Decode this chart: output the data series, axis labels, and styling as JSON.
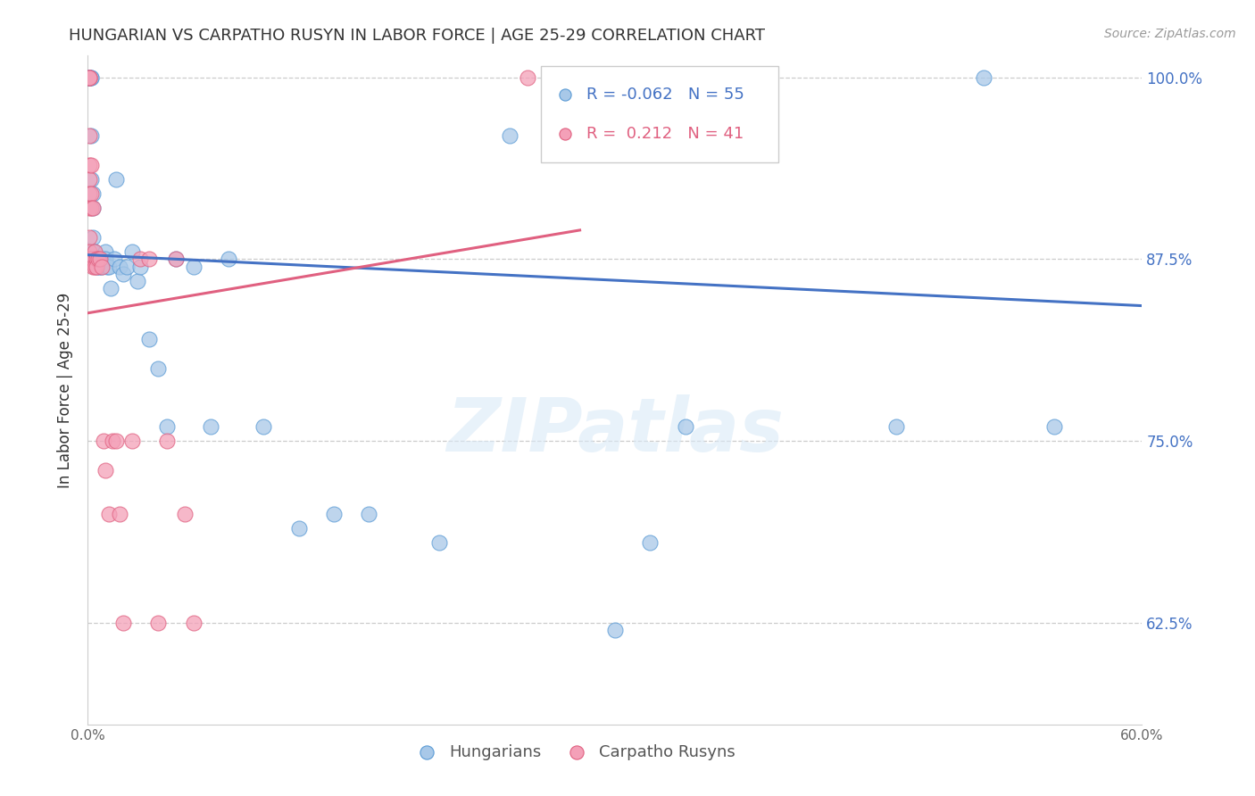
{
  "title": "HUNGARIAN VS CARPATHO RUSYN IN LABOR FORCE | AGE 25-29 CORRELATION CHART",
  "source": "Source: ZipAtlas.com",
  "ylabel": "In Labor Force | Age 25-29",
  "xlim": [
    0.0,
    0.6
  ],
  "ylim": [
    0.555,
    1.015
  ],
  "yticks": [
    0.625,
    0.75,
    0.875,
    1.0
  ],
  "ytick_labels": [
    "62.5%",
    "75.0%",
    "87.5%",
    "100.0%"
  ],
  "xticks": [
    0.0,
    0.1,
    0.2,
    0.3,
    0.4,
    0.5,
    0.6
  ],
  "xtick_labels": [
    "0.0%",
    "",
    "",
    "",
    "",
    "",
    "60.0%"
  ],
  "blue_color": "#a8c8e8",
  "pink_color": "#f4a0b8",
  "blue_edge_color": "#5b9bd5",
  "pink_edge_color": "#e06080",
  "blue_line_color": "#4472c4",
  "pink_line_color": "#e06080",
  "legend_label_blue": "Hungarians",
  "legend_label_pink": "Carpatho Rusyns",
  "R_blue": -0.062,
  "N_blue": 55,
  "R_pink": 0.212,
  "N_pink": 41,
  "watermark": "ZIPatlas",
  "blue_trend_x0": 0.0,
  "blue_trend_y0": 0.878,
  "blue_trend_x1": 0.6,
  "blue_trend_y1": 0.843,
  "pink_trend_x0": 0.0,
  "pink_trend_y0": 0.838,
  "pink_trend_x1": 0.28,
  "pink_trend_y1": 0.895,
  "blue_scatter_x": [
    0.001,
    0.001,
    0.001,
    0.001,
    0.002,
    0.002,
    0.002,
    0.002,
    0.003,
    0.003,
    0.003,
    0.003,
    0.004,
    0.004,
    0.005,
    0.005,
    0.006,
    0.006,
    0.007,
    0.007,
    0.008,
    0.008,
    0.009,
    0.01,
    0.01,
    0.011,
    0.012,
    0.013,
    0.015,
    0.016,
    0.018,
    0.02,
    0.022,
    0.025,
    0.028,
    0.03,
    0.035,
    0.04,
    0.045,
    0.05,
    0.06,
    0.07,
    0.08,
    0.1,
    0.12,
    0.14,
    0.16,
    0.2,
    0.24,
    0.3,
    0.32,
    0.34,
    0.46,
    0.51,
    0.55
  ],
  "blue_scatter_y": [
    1.0,
    1.0,
    1.0,
    1.0,
    1.0,
    1.0,
    0.96,
    0.93,
    0.92,
    0.91,
    0.89,
    0.88,
    0.88,
    0.875,
    0.875,
    0.87,
    0.875,
    0.87,
    0.875,
    0.87,
    0.875,
    0.87,
    0.875,
    0.88,
    0.875,
    0.87,
    0.87,
    0.855,
    0.875,
    0.93,
    0.87,
    0.865,
    0.87,
    0.88,
    0.86,
    0.87,
    0.82,
    0.8,
    0.76,
    0.875,
    0.87,
    0.76,
    0.875,
    0.76,
    0.69,
    0.7,
    0.7,
    0.68,
    0.96,
    0.62,
    0.68,
    0.76,
    0.76,
    1.0,
    0.76
  ],
  "pink_scatter_x": [
    0.001,
    0.001,
    0.001,
    0.001,
    0.001,
    0.001,
    0.001,
    0.001,
    0.001,
    0.001,
    0.001,
    0.002,
    0.002,
    0.002,
    0.002,
    0.003,
    0.003,
    0.004,
    0.004,
    0.005,
    0.005,
    0.006,
    0.007,
    0.008,
    0.009,
    0.01,
    0.012,
    0.014,
    0.016,
    0.018,
    0.02,
    0.025,
    0.03,
    0.035,
    0.04,
    0.045,
    0.05,
    0.055,
    0.06,
    0.25,
    0.28
  ],
  "pink_scatter_y": [
    1.0,
    1.0,
    1.0,
    0.96,
    0.94,
    0.93,
    0.92,
    0.91,
    0.89,
    0.88,
    0.875,
    0.94,
    0.92,
    0.91,
    0.875,
    0.91,
    0.87,
    0.88,
    0.87,
    0.875,
    0.87,
    0.875,
    0.875,
    0.87,
    0.75,
    0.73,
    0.7,
    0.75,
    0.75,
    0.7,
    0.625,
    0.75,
    0.875,
    0.875,
    0.625,
    0.75,
    0.875,
    0.7,
    0.625,
    1.0,
    1.0
  ]
}
